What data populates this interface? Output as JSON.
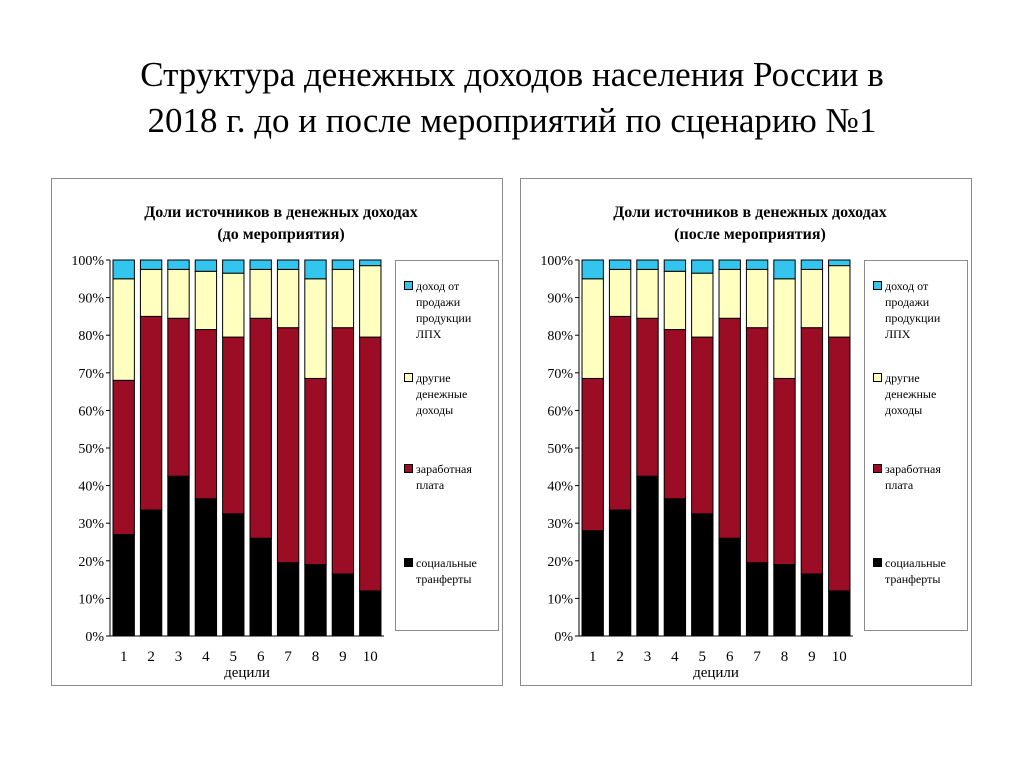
{
  "slide": {
    "title_line1": "Структура денежных доходов населения России в",
    "title_line2": "2018 г. до и после мероприятий по сценарию №1"
  },
  "colors": {
    "social": "#000000",
    "wage": "#9b0c25",
    "other": "#ffffc0",
    "lph": "#33c5ee"
  },
  "chart_data": [
    {
      "type": "bar",
      "stacked": true,
      "percent": true,
      "title_line1": "Доли источников в денежных доходах",
      "title_line2": "(до мероприятия)",
      "xlabel": "децили",
      "ylim": [
        0,
        100
      ],
      "categories": [
        "1",
        "2",
        "3",
        "4",
        "5",
        "6",
        "7",
        "8",
        "9",
        "10"
      ],
      "yticks": [
        "0%",
        "10%",
        "20%",
        "30%",
        "40%",
        "50%",
        "60%",
        "70%",
        "80%",
        "90%",
        "100%"
      ],
      "legend_position": "right",
      "series": [
        {
          "key": "social",
          "name": "социальные транферты",
          "values": [
            27,
            33.5,
            42.5,
            36.5,
            32.5,
            26,
            19.5,
            19,
            16.5,
            12
          ]
        },
        {
          "key": "wage",
          "name": "заработная плата",
          "values": [
            41,
            51.5,
            42,
            45,
            47,
            58.5,
            62.5,
            49.5,
            65.5,
            67.5
          ]
        },
        {
          "key": "other",
          "name": "другие денежные доходы",
          "values": [
            27,
            12.5,
            13,
            15.5,
            17,
            13,
            15.5,
            26.5,
            15.5,
            19
          ]
        },
        {
          "key": "lph",
          "name": "доход от продажи продукции ЛПХ",
          "values": [
            5,
            2.5,
            2.5,
            3,
            3.5,
            2.5,
            2.5,
            5,
            2.5,
            1.5
          ]
        }
      ]
    },
    {
      "type": "bar",
      "stacked": true,
      "percent": true,
      "title_line1": "Доли источников в денежных доходах",
      "title_line2": "(после мероприятия)",
      "xlabel": "децили",
      "ylim": [
        0,
        100
      ],
      "categories": [
        "1",
        "2",
        "3",
        "4",
        "5",
        "6",
        "7",
        "8",
        "9",
        "10"
      ],
      "yticks": [
        "0%",
        "10%",
        "20%",
        "30%",
        "40%",
        "50%",
        "60%",
        "70%",
        "80%",
        "90%",
        "100%"
      ],
      "legend_position": "right",
      "series": [
        {
          "key": "social",
          "name": "социальные транферты",
          "values": [
            28,
            33.5,
            42.5,
            36.5,
            32.5,
            26,
            19.5,
            19,
            16.5,
            12
          ]
        },
        {
          "key": "wage",
          "name": "заработная плата",
          "values": [
            40.5,
            51.5,
            42,
            45,
            47,
            58.5,
            62.5,
            49.5,
            65.5,
            67.5
          ]
        },
        {
          "key": "other",
          "name": "другие денежные доходы",
          "values": [
            26.5,
            12.5,
            13,
            15.5,
            17,
            13,
            15.5,
            26.5,
            15.5,
            19
          ]
        },
        {
          "key": "lph",
          "name": "доход от продажи продукции ЛПХ",
          "values": [
            5,
            2.5,
            2.5,
            3,
            3.5,
            2.5,
            2.5,
            5,
            2.5,
            1.5
          ]
        }
      ]
    }
  ]
}
